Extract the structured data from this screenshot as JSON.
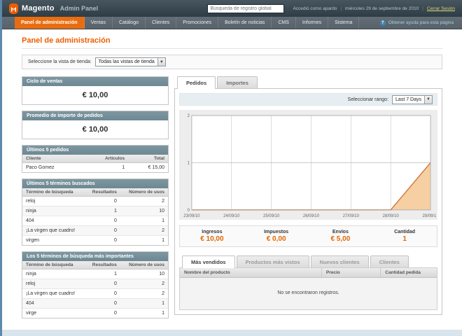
{
  "colors": {
    "accent": "#eb5e00",
    "header_top": "#47565f",
    "header_bottom": "#2e3d45",
    "nav_bg": "#57626a",
    "nav_active": "#e96d10",
    "box_header": "#6d8893",
    "value_orange": "#e26703",
    "help_link": "#a9cfe3",
    "logout_link": "#ded77b",
    "strip_bg": "#e7eef1",
    "footer_strip": "#d9e5ec"
  },
  "header": {
    "logo_text": "Magento",
    "logo_suffix": "Admin Panel",
    "search_placeholder": "Búsqueda de registro global",
    "logged_in": "Accedió como apardo",
    "date": "miércoles 29 de septiembre de 2010",
    "logout_label": "Cerrar Sesión"
  },
  "nav": {
    "items": [
      "Panel de administración",
      "Ventas",
      "Catálogo",
      "Clientes",
      "Promociones",
      "Boletín de noticias",
      "CMS",
      "Informes",
      "Sistema"
    ],
    "help_label": "Obtener ayuda para esta página"
  },
  "page": {
    "title": "Panel de administración",
    "store_label": "Seleccione la vista de tienda:",
    "store_value": "Todas las vistas de tienda"
  },
  "left": {
    "lifetime": {
      "title": "Ciclo de ventas",
      "value": "€ 10,00"
    },
    "average": {
      "title": "Promedio de importe de pedidos",
      "value": "€ 10,00"
    },
    "last_orders": {
      "title": "Últimos 5 pedidos",
      "headers": [
        "Cliente",
        "Artículos",
        "Total"
      ],
      "rows": [
        [
          "Paco Gomez",
          "1",
          "€ 15,00"
        ]
      ]
    },
    "last_terms": {
      "title": "Últimos 5 términos buscados",
      "headers": [
        "Término de búsqueda",
        "Resultados",
        "Número de usos"
      ],
      "rows": [
        [
          "reloj",
          "0",
          "2"
        ],
        [
          "ninja",
          "1",
          "10"
        ],
        [
          "404",
          "0",
          "1"
        ],
        [
          "¡La virgen que cuadro!",
          "0",
          "2"
        ],
        [
          "virgen",
          "0",
          "1"
        ]
      ]
    },
    "top_terms": {
      "title": "Los 5 términos de búsqueda más importantes",
      "headers": [
        "Término de búsqueda",
        "Resultados",
        "Número de usos"
      ],
      "rows": [
        [
          "ninja",
          "1",
          "10"
        ],
        [
          "reloj",
          "0",
          "2"
        ],
        [
          "¡La virgen que cuadro!",
          "0",
          "2"
        ],
        [
          "404",
          "0",
          "1"
        ],
        [
          "virge",
          "0",
          "1"
        ]
      ]
    }
  },
  "dashboard": {
    "tab_orders": "Pedidos",
    "tab_amounts": "Importes",
    "range_label": "Seleccionar rango:",
    "range_value": "Last 7 Days",
    "totals": [
      {
        "label": "Ingresos",
        "value": "€ 10,00"
      },
      {
        "label": "Impuestos",
        "value": "€ 0,00"
      },
      {
        "label": "Envíos",
        "value": "€ 5,00"
      },
      {
        "label": "Cantidad",
        "value": "1"
      }
    ],
    "bottom_tabs": [
      "Más vendidos",
      "Productos más vistos",
      "Nuevos clientes",
      "Clientes"
    ],
    "grid": {
      "headers": [
        "Nombre del producto",
        "Precio",
        "Cantidad pedida"
      ],
      "empty_text": "No se encontraron registros."
    }
  },
  "chart_data": {
    "type": "area",
    "title": "Pedidos",
    "x": [
      "23/09/10",
      "24/09/10",
      "25/09/10",
      "26/09/10",
      "27/09/10",
      "28/09/10",
      "29/09/10"
    ],
    "values": [
      0,
      0,
      0,
      0,
      0,
      0,
      1
    ],
    "ylim": [
      0,
      2
    ],
    "yticks": [
      0,
      1,
      2
    ],
    "grid": true,
    "legend": false,
    "series_color": "#cf7440",
    "fill_color": "#f6cfa2"
  }
}
